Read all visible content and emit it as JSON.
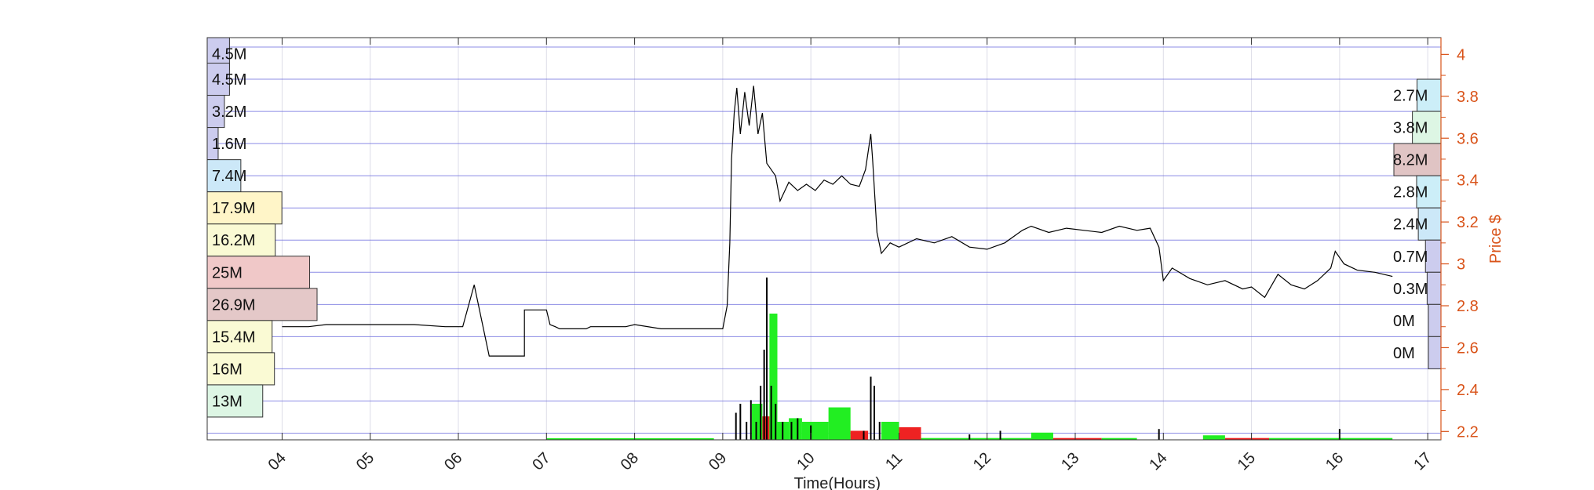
{
  "chart_data": {
    "type": "line",
    "xlabel": "Time(Hours)",
    "ylabel": "Price $",
    "xlim": [
      3.15,
      17.15
    ],
    "ylim": [
      2.16,
      4.08
    ],
    "x_ticks": [
      "04",
      "05",
      "06",
      "07",
      "08",
      "09",
      "10",
      "11",
      "12",
      "13",
      "14",
      "15",
      "16",
      "17"
    ],
    "y_ticks": [
      "2.2",
      "2.4",
      "2.6",
      "2.8",
      "3",
      "3.2",
      "3.4",
      "3.6",
      "3.8",
      "4"
    ],
    "grid": true,
    "price_series": [
      [
        4.0,
        2.7
      ],
      [
        4.3,
        2.7
      ],
      [
        4.5,
        2.71
      ],
      [
        5.0,
        2.71
      ],
      [
        5.3,
        2.71
      ],
      [
        5.5,
        2.71
      ],
      [
        5.85,
        2.7
      ],
      [
        6.05,
        2.7
      ],
      [
        6.18,
        2.9
      ],
      [
        6.35,
        2.56
      ],
      [
        6.75,
        2.56
      ],
      [
        6.75,
        2.78
      ],
      [
        7.0,
        2.78
      ],
      [
        7.04,
        2.71
      ],
      [
        7.1,
        2.7
      ],
      [
        7.15,
        2.69
      ],
      [
        7.45,
        2.69
      ],
      [
        7.5,
        2.7
      ],
      [
        7.9,
        2.7
      ],
      [
        8.0,
        2.71
      ],
      [
        8.3,
        2.69
      ],
      [
        8.5,
        2.69
      ],
      [
        9.0,
        2.69
      ],
      [
        9.05,
        2.8
      ],
      [
        9.08,
        3.1
      ],
      [
        9.1,
        3.5
      ],
      [
        9.13,
        3.72
      ],
      [
        9.16,
        3.84
      ],
      [
        9.2,
        3.62
      ],
      [
        9.25,
        3.82
      ],
      [
        9.3,
        3.66
      ],
      [
        9.35,
        3.85
      ],
      [
        9.4,
        3.62
      ],
      [
        9.45,
        3.72
      ],
      [
        9.5,
        3.48
      ],
      [
        9.6,
        3.42
      ],
      [
        9.65,
        3.3
      ],
      [
        9.75,
        3.39
      ],
      [
        9.85,
        3.35
      ],
      [
        9.95,
        3.38
      ],
      [
        10.05,
        3.35
      ],
      [
        10.15,
        3.4
      ],
      [
        10.25,
        3.38
      ],
      [
        10.35,
        3.42
      ],
      [
        10.45,
        3.38
      ],
      [
        10.55,
        3.37
      ],
      [
        10.62,
        3.45
      ],
      [
        10.68,
        3.62
      ],
      [
        10.7,
        3.5
      ],
      [
        10.75,
        3.15
      ],
      [
        10.8,
        3.05
      ],
      [
        10.9,
        3.1
      ],
      [
        11.0,
        3.08
      ],
      [
        11.2,
        3.12
      ],
      [
        11.4,
        3.1
      ],
      [
        11.6,
        3.13
      ],
      [
        11.8,
        3.08
      ],
      [
        12.0,
        3.07
      ],
      [
        12.2,
        3.1
      ],
      [
        12.4,
        3.16
      ],
      [
        12.5,
        3.18
      ],
      [
        12.7,
        3.15
      ],
      [
        12.9,
        3.17
      ],
      [
        13.1,
        3.16
      ],
      [
        13.3,
        3.15
      ],
      [
        13.5,
        3.18
      ],
      [
        13.7,
        3.16
      ],
      [
        13.85,
        3.17
      ],
      [
        13.95,
        3.08
      ],
      [
        14.0,
        2.92
      ],
      [
        14.1,
        2.98
      ],
      [
        14.3,
        2.93
      ],
      [
        14.5,
        2.9
      ],
      [
        14.7,
        2.92
      ],
      [
        14.9,
        2.88
      ],
      [
        15.0,
        2.89
      ],
      [
        15.15,
        2.84
      ],
      [
        15.3,
        2.95
      ],
      [
        15.45,
        2.9
      ],
      [
        15.6,
        2.88
      ],
      [
        15.75,
        2.92
      ],
      [
        15.9,
        2.98
      ],
      [
        15.95,
        3.06
      ],
      [
        16.05,
        3.0
      ],
      [
        16.2,
        2.97
      ],
      [
        16.4,
        2.96
      ],
      [
        16.6,
        2.94
      ]
    ],
    "volume_bars": [
      {
        "x0": 9.33,
        "x1": 9.45,
        "h": 0.2,
        "c": "green"
      },
      {
        "x0": 9.45,
        "x1": 9.55,
        "h": 0.13,
        "c": "red"
      },
      {
        "x0": 9.53,
        "x1": 9.62,
        "h": 0.7,
        "c": "green"
      },
      {
        "x0": 9.62,
        "x1": 9.75,
        "h": 0.1,
        "c": "green"
      },
      {
        "x0": 9.75,
        "x1": 9.9,
        "h": 0.12,
        "c": "green"
      },
      {
        "x0": 9.9,
        "x1": 10.2,
        "h": 0.1,
        "c": "green"
      },
      {
        "x0": 10.2,
        "x1": 10.45,
        "h": 0.18,
        "c": "green"
      },
      {
        "x0": 10.45,
        "x1": 10.65,
        "h": 0.05,
        "c": "red"
      },
      {
        "x0": 10.8,
        "x1": 11.0,
        "h": 0.1,
        "c": "green"
      },
      {
        "x0": 11.0,
        "x1": 11.25,
        "h": 0.07,
        "c": "red"
      },
      {
        "x0": 11.25,
        "x1": 12.5,
        "h": 0.01,
        "c": "green"
      },
      {
        "x0": 12.5,
        "x1": 12.75,
        "h": 0.04,
        "c": "green"
      },
      {
        "x0": 12.75,
        "x1": 13.3,
        "h": 0.01,
        "c": "red"
      },
      {
        "x0": 13.3,
        "x1": 13.7,
        "h": 0.01,
        "c": "green"
      },
      {
        "x0": 14.45,
        "x1": 14.7,
        "h": 0.025,
        "c": "green"
      },
      {
        "x0": 14.7,
        "x1": 15.2,
        "h": 0.01,
        "c": "red"
      },
      {
        "x0": 15.2,
        "x1": 16.6,
        "h": 0.01,
        "c": "green"
      },
      {
        "x0": 7.0,
        "x1": 8.9,
        "h": 0.005,
        "c": "green"
      }
    ],
    "volume_spikes": [
      [
        9.15,
        0.15
      ],
      [
        9.2,
        0.2
      ],
      [
        9.27,
        0.1
      ],
      [
        9.32,
        0.22
      ],
      [
        9.38,
        0.1
      ],
      [
        9.43,
        0.3
      ],
      [
        9.47,
        0.5
      ],
      [
        9.5,
        0.9
      ],
      [
        9.55,
        0.3
      ],
      [
        9.6,
        0.2
      ],
      [
        9.68,
        0.1
      ],
      [
        9.78,
        0.1
      ],
      [
        9.85,
        0.12
      ],
      [
        10.0,
        0.08
      ],
      [
        10.6,
        0.05
      ],
      [
        10.68,
        0.35
      ],
      [
        10.72,
        0.3
      ],
      [
        10.78,
        0.1
      ],
      [
        11.8,
        0.03
      ],
      [
        12.15,
        0.05
      ],
      [
        13.95,
        0.06
      ],
      [
        16.0,
        0.06
      ]
    ],
    "left_volume_profile": {
      "labels": [
        "4.5M",
        "4.5M",
        "3.2M",
        "1.6M",
        "7.4M",
        "17.9M",
        "16.2M",
        "25M",
        "26.9M",
        "15.4M",
        "16M",
        "13M"
      ],
      "values": [
        4.5,
        4.5,
        3.2,
        1.6,
        7.4,
        17.9,
        16.2,
        25,
        26.9,
        15.4,
        16,
        13
      ],
      "colors": [
        "#ccccee",
        "#ccccee",
        "#ccccee",
        "#ccccee",
        "#cce8f8",
        "#fff5c8",
        "#fafad4",
        "#f0c8c8",
        "#e4c8c8",
        "#fafad4",
        "#fafad4",
        "#ddf6e4"
      ]
    },
    "right_volume_profile": {
      "labels": [
        "2.7M",
        "3.8M",
        "8.2M",
        "2.8M",
        "2.4M",
        "0.7M",
        "0.3M",
        "0M",
        "0M"
      ],
      "values": [
        2.7,
        3.8,
        8.2,
        2.8,
        2.4,
        0.7,
        0.3,
        0,
        0
      ],
      "colors": [
        "#cceef8",
        "#ddf6e4",
        "#e0c4c4",
        "#cceef8",
        "#cce8f8",
        "#ccccee",
        "#ccccee",
        "#ccccee",
        "#ccccee"
      ]
    },
    "colors": {
      "price_line": "#000000",
      "right_axis": "#d95319",
      "hgrid": "#6666dd",
      "vgrid": "#dddde8",
      "volume_up": "#22ee22",
      "volume_down": "#ee2222"
    }
  }
}
